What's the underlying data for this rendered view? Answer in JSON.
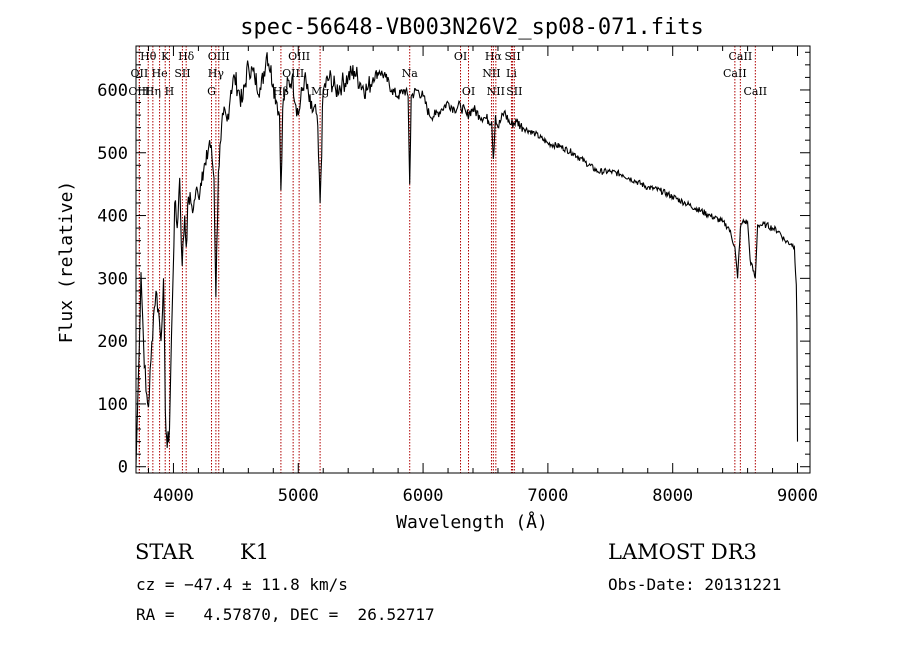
{
  "info": {
    "object_class": "STAR",
    "subclass": "K1",
    "survey": "LAMOST DR3",
    "cz": "cz = −47.4 ± 11.8 km/s",
    "obs_date": "Obs-Date: 20131221",
    "coords": "RA =   4.57870, DEC =  26.52717"
  },
  "chart_data": {
    "type": "line",
    "title": "spec-56648-VB003N26V2_sp08-071.fits",
    "xlabel": "Wavelength (Å)",
    "ylabel": "Flux (relative)",
    "xlim": [
      3700,
      9100
    ],
    "ylim": [
      -10,
      670
    ],
    "xticks": [
      4000,
      5000,
      6000,
      7000,
      8000,
      9000
    ],
    "yticks": [
      0,
      100,
      200,
      300,
      400,
      500,
      600
    ],
    "series": [
      {
        "name": "flux",
        "x": [
          3700,
          3720,
          3740,
          3760,
          3780,
          3800,
          3820,
          3840,
          3860,
          3880,
          3900,
          3920,
          3935,
          3950,
          3968,
          3990,
          4010,
          4030,
          4050,
          4070,
          4090,
          4102,
          4120,
          4140,
          4160,
          4180,
          4200,
          4230,
          4260,
          4290,
          4310,
          4325,
          4340,
          4360,
          4380,
          4400,
          4430,
          4460,
          4490,
          4520,
          4550,
          4600,
          4650,
          4700,
          4750,
          4800,
          4830,
          4850,
          4861,
          4875,
          4900,
          4950,
          5000,
          5050,
          5100,
          5150,
          5175,
          5200,
          5250,
          5300,
          5350,
          5400,
          5450,
          5500,
          5550,
          5600,
          5650,
          5700,
          5750,
          5800,
          5850,
          5880,
          5893,
          5905,
          5950,
          6000,
          6050,
          6100,
          6150,
          6200,
          6250,
          6300,
          6350,
          6400,
          6450,
          6500,
          6550,
          6563,
          6580,
          6600,
          6650,
          6700,
          6750,
          6800,
          6900,
          7000,
          7100,
          7200,
          7300,
          7400,
          7500,
          7600,
          7700,
          7800,
          7900,
          8000,
          8100,
          8200,
          8300,
          8400,
          8450,
          8498,
          8520,
          8542,
          8560,
          8600,
          8620,
          8662,
          8680,
          8700,
          8750,
          8800,
          8850,
          8900,
          8950,
          8975,
          8990,
          8995,
          9000
        ],
        "y": [
          0,
          150,
          310,
          200,
          120,
          95,
          170,
          240,
          280,
          250,
          200,
          300,
          90,
          30,
          60,
          250,
          420,
          380,
          460,
          320,
          400,
          350,
          430,
          420,
          410,
          440,
          430,
          470,
          480,
          520,
          490,
          460,
          270,
          470,
          520,
          560,
          550,
          600,
          620,
          600,
          580,
          640,
          620,
          600,
          660,
          610,
          580,
          560,
          440,
          570,
          600,
          620,
          560,
          620,
          570,
          560,
          420,
          600,
          620,
          600,
          610,
          620,
          630,
          610,
          600,
          620,
          630,
          620,
          600,
          590,
          600,
          590,
          450,
          590,
          600,
          590,
          560,
          560,
          570,
          580,
          570,
          575,
          560,
          570,
          560,
          555,
          550,
          490,
          560,
          540,
          565,
          545,
          550,
          540,
          530,
          515,
          510,
          500,
          485,
          470,
          470,
          465,
          455,
          445,
          440,
          430,
          420,
          410,
          400,
          390,
          380,
          350,
          300,
          380,
          390,
          390,
          330,
          300,
          385,
          385,
          385,
          380,
          375,
          360,
          355,
          350,
          290,
          230,
          40
        ]
      }
    ],
    "lines": [
      {
        "name": "Hθ",
        "wave": 3798,
        "row": 0
      },
      {
        "name": "OII",
        "wave": 3727,
        "row": 1
      },
      {
        "name": "OIII",
        "wave": 3727,
        "row": 2
      },
      {
        "name": "He",
        "wave": 3889,
        "row": 1
      },
      {
        "name": "Hη",
        "wave": 3835,
        "row": 2
      },
      {
        "name": "K",
        "wave": 3934,
        "row": 0
      },
      {
        "name": "H",
        "wave": 3968,
        "row": 2
      },
      {
        "name": "Hδ",
        "wave": 4102,
        "row": 0
      },
      {
        "name": "SII",
        "wave": 4072,
        "row": 1
      },
      {
        "name": "OIII",
        "wave": 4363,
        "row": 0
      },
      {
        "name": "Hγ",
        "wave": 4340,
        "row": 1
      },
      {
        "name": "G",
        "wave": 4305,
        "row": 2
      },
      {
        "name": "Hβ",
        "wave": 4861,
        "row": 2
      },
      {
        "name": "OIII",
        "wave": 5007,
        "row": 0
      },
      {
        "name": "OIII",
        "wave": 4959,
        "row": 1
      },
      {
        "name": "Mg",
        "wave": 5175,
        "row": 2
      },
      {
        "name": "Na",
        "wave": 5893,
        "row": 1
      },
      {
        "name": "OI",
        "wave": 6300,
        "row": 0
      },
      {
        "name": "OI",
        "wave": 6364,
        "row": 2
      },
      {
        "name": "Hα",
        "wave": 6563,
        "row": 0
      },
      {
        "name": "NII",
        "wave": 6548,
        "row": 1
      },
      {
        "name": "NII",
        "wave": 6583,
        "row": 2
      },
      {
        "name": "SII",
        "wave": 6717,
        "row": 0
      },
      {
        "name": "Li",
        "wave": 6708,
        "row": 1
      },
      {
        "name": "SII",
        "wave": 6731,
        "row": 2
      },
      {
        "name": "CaII",
        "wave": 8542,
        "row": 0
      },
      {
        "name": "CaII",
        "wave": 8498,
        "row": 1
      },
      {
        "name": "CaII",
        "wave": 8662,
        "row": 2
      }
    ]
  }
}
